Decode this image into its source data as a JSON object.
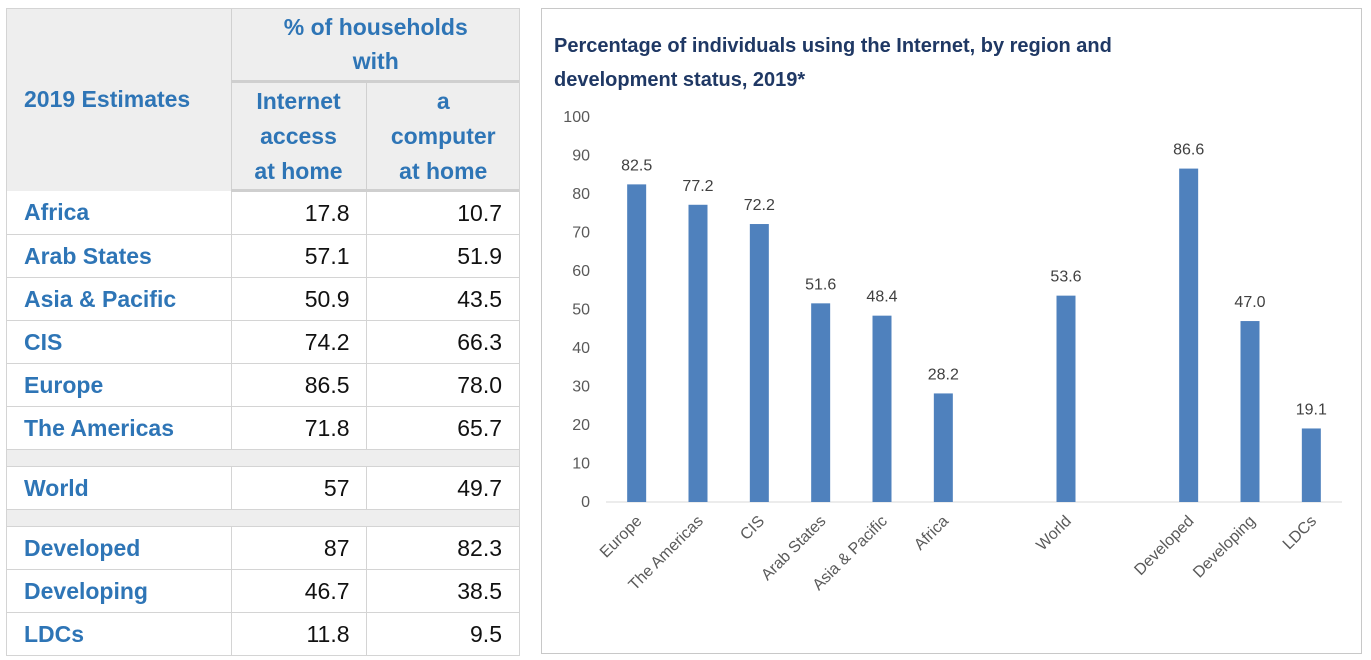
{
  "table": {
    "corner_label": "2019 Estimates",
    "group_header": "% of households with",
    "col1_lines": [
      "Internet",
      "access",
      "at home"
    ],
    "col2_lines": [
      "a",
      "computer",
      "at home"
    ],
    "rows": [
      {
        "name": "Africa",
        "internet": "17.8",
        "computer": "10.7"
      },
      {
        "name": "Arab States",
        "internet": "57.1",
        "computer": "51.9"
      },
      {
        "name": "Asia & Pacific",
        "internet": "50.9",
        "computer": "43.5"
      },
      {
        "name": "CIS",
        "internet": "74.2",
        "computer": "66.3"
      },
      {
        "name": "Europe",
        "internet": "86.5",
        "computer": "78.0"
      },
      {
        "name": "The Americas",
        "internet": "71.8",
        "computer": "65.7"
      },
      {
        "spacer": true
      },
      {
        "name": "World",
        "internet": "57",
        "computer": "49.7"
      },
      {
        "spacer": true
      },
      {
        "name": "Developed",
        "internet": "87",
        "computer": "82.3"
      },
      {
        "name": "Developing",
        "internet": "46.7",
        "computer": "38.5"
      },
      {
        "name": "LDCs",
        "internet": "11.8",
        "computer": "9.5"
      }
    ]
  },
  "chart_data": {
    "type": "bar",
    "title_lines": [
      "Percentage of individuals using the Internet, by region and",
      "development status, 2019*"
    ],
    "xlabel": "",
    "ylabel": "",
    "ylim": [
      0,
      100
    ],
    "yticks": [
      0,
      10,
      20,
      30,
      40,
      50,
      60,
      70,
      80,
      90,
      100
    ],
    "grid": false,
    "legend": "none",
    "categories": [
      "Europe",
      "The Americas",
      "CIS",
      "Arab States",
      "Asia & Pacific",
      "Africa",
      "",
      "World",
      "",
      "Developed",
      "Developing",
      "LDCs"
    ],
    "values": [
      82.5,
      77.2,
      72.2,
      51.6,
      48.4,
      28.2,
      null,
      53.6,
      null,
      86.6,
      47.0,
      19.1
    ],
    "data_labels": [
      "82.5",
      "77.2",
      "72.2",
      "51.6",
      "48.4",
      "28.2",
      "",
      "53.6",
      "",
      "86.6",
      "47.0",
      "19.1"
    ],
    "bar_color": "#4f81bd"
  },
  "colors": {
    "accent": "#2e75b6",
    "title": "#1f3864",
    "header_bg": "#eeeeee"
  }
}
